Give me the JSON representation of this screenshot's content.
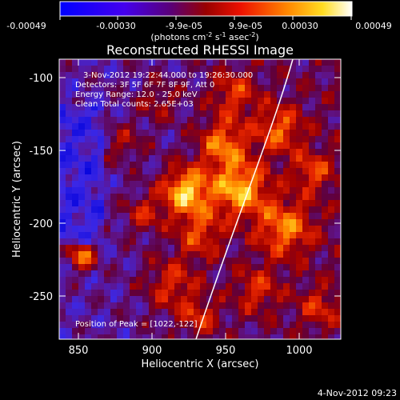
{
  "colorbar": {
    "ticks": [
      "-0.00049",
      "-0.00030",
      "-9.9e-05",
      "9.9e-05",
      "0.00030",
      "0.00049"
    ],
    "units_prefix": "(photons cm",
    "units_sup1": "-2",
    "units_mid": " s",
    "units_sup2": "-1",
    "units_mid2": " asec",
    "units_sup3": "-2",
    "units_suffix": ")",
    "colors": [
      "#0000ff",
      "#6600cc",
      "#880000",
      "#ff0000",
      "#ff8800",
      "#ffee00",
      "#ffffff"
    ]
  },
  "image": {
    "title": "Reconstructed RHESSI Image",
    "info": {
      "time_range": "3-Nov-2012 19:22:44.000 to 19:26:30.000",
      "detectors": "Detectors: 3F 5F 6F 7F 8F 9F, Att 0",
      "energy": "Energy Range: 12.0 - 25.0 keV",
      "clean": "Clean      Total counts: 2.65E+03"
    },
    "peak_label": "Position of Peak = [1022,-122]"
  },
  "axes": {
    "xlabel": "Heliocentric X (arcsec)",
    "ylabel": "Heliocentric Y (arcsec)",
    "xticks": [
      "850",
      "900",
      "950",
      "1000"
    ],
    "yticks": [
      "-100",
      "-150",
      "-200",
      "-250"
    ],
    "xlim": [
      836,
      1028
    ],
    "ylim": [
      -284,
      -90
    ]
  },
  "footer": {
    "timestamp": "4-Nov-2012 09:23"
  }
}
